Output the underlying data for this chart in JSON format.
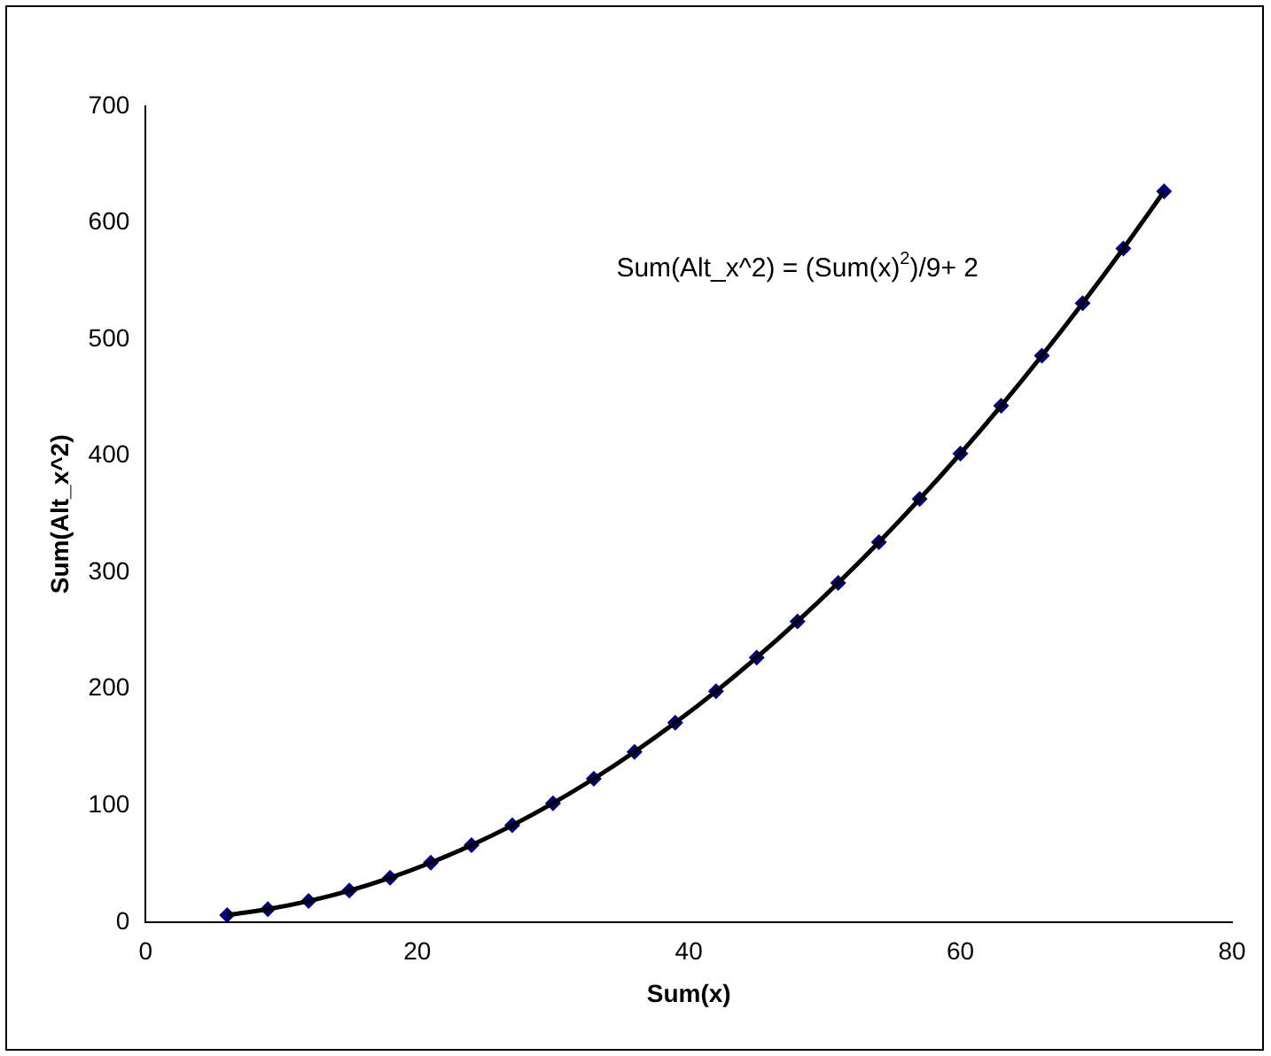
{
  "chart_data": {
    "type": "scatter",
    "xlabel": "Sum(x)",
    "ylabel": "Sum(Alt_x^2)",
    "annotations": [
      "Sum(Alt_x^2) = (Sum(x)$^{2}$)/9+ 2"
    ],
    "x": [
      6,
      9,
      12,
      15,
      18,
      21,
      24,
      27,
      30,
      33,
      36,
      39,
      42,
      45,
      48,
      51,
      54,
      57,
      60,
      63,
      66,
      69,
      72,
      75
    ],
    "series": [
      {
        "type": "line",
        "color": "#000000",
        "marker": "none",
        "values": [
          6,
          11,
          18,
          27,
          38,
          51,
          66,
          83,
          102,
          123,
          146,
          171,
          198,
          227,
          258,
          291,
          326,
          363,
          402,
          443,
          486,
          531,
          578,
          627
        ]
      },
      {
        "color": "#000080",
        "marker": "diamond",
        "values": [
          6,
          11,
          18,
          27,
          38,
          51,
          66,
          83,
          102,
          123,
          146,
          171,
          198,
          227,
          258,
          291,
          326,
          363,
          402,
          443,
          486,
          531,
          578,
          627
        ]
      }
    ],
    "xlim": [
      0,
      80
    ],
    "xticks": [
      0,
      20,
      40,
      60,
      80
    ],
    "ylim": [
      0,
      700
    ],
    "yticks": [
      0,
      100,
      200,
      300,
      400,
      500,
      600,
      700
    ],
    "grid": false,
    "legend": false
  }
}
